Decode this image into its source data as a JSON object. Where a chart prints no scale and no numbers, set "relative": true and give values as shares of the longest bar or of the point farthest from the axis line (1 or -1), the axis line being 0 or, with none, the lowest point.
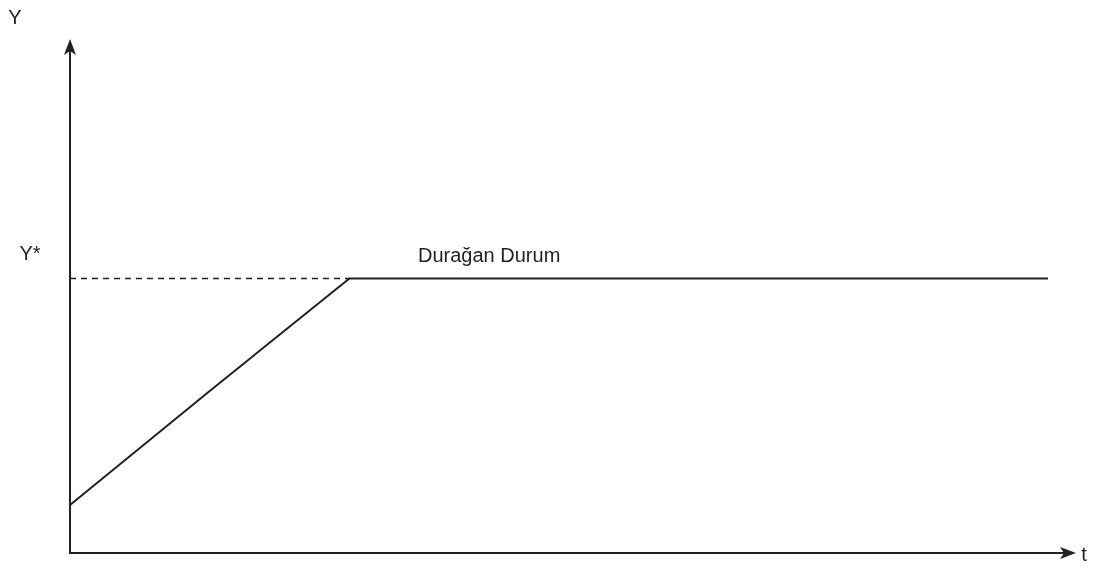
{
  "chart_data": {
    "type": "line",
    "relative": true,
    "xlabel": "t",
    "categories": [
      null,
      null,
      null,
      null,
      null,
      null,
      null,
      null
    ],
    "series": [
      {
        "color": "#231f20",
        "values": [
          0.175,
          0.59,
          1,
          1,
          1,
          1,
          1,
          1
        ]
      }
    ],
    "ref_lines": [
      {
        "axis": "y",
        "value": 1,
        "label": "Y*",
        "line_style": "dashed",
        "color": "#231f20"
      }
    ],
    "annotations": [
      "Y",
      "Durağan Durum"
    ],
    "grid": false,
    "legend": false,
    "marker": "none",
    "line_style": "solid"
  }
}
